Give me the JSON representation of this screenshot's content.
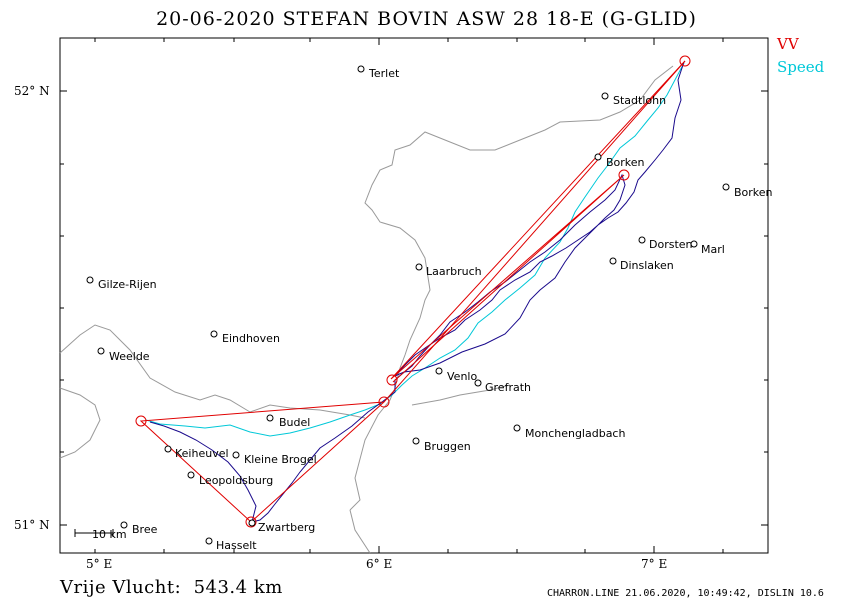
{
  "title": "20-06-2020   STEFAN BOVIN   ASW 28 18-E (G-GLID)",
  "legend": {
    "vv_label": "VV",
    "vv_color": "#e00000",
    "speed_label": "Speed",
    "speed_color": "#00c8d8"
  },
  "track_color": "#1a0a8c",
  "border_color": "#9a9a9a",
  "distance_text": "Vrije Vlucht:  543.4 km",
  "footer_text": "CHARRON.LINE 21.06.2020, 10:49:42, DISLIN 10.6",
  "axes": {
    "y_ticks": [
      {
        "value": 52,
        "label": "52° N"
      },
      {
        "value": 51,
        "label": "51° N"
      }
    ],
    "x_ticks": [
      {
        "value": 5,
        "label": "5° E"
      },
      {
        "value": 6,
        "label": "6° E"
      },
      {
        "value": 7,
        "label": "7° E"
      }
    ]
  },
  "scale_bar_label": "10 km",
  "places": [
    {
      "name": "Terlet"
    },
    {
      "name": "Stadtlohn"
    },
    {
      "name": "Borken"
    },
    {
      "name": "Borken"
    },
    {
      "name": "Dorsten"
    },
    {
      "name": "Marl"
    },
    {
      "name": "Dinslaken"
    },
    {
      "name": "Laarbruch"
    },
    {
      "name": "Gilze-Rijen"
    },
    {
      "name": "Eindhoven"
    },
    {
      "name": "Weelde"
    },
    {
      "name": "Venlo"
    },
    {
      "name": "Grefrath"
    },
    {
      "name": "Budel"
    },
    {
      "name": "Monchengladbach"
    },
    {
      "name": "Bruggen"
    },
    {
      "name": "Keiheuvel"
    },
    {
      "name": "Kleine Brogel"
    },
    {
      "name": "Leopoldsburg"
    },
    {
      "name": "Zwartberg"
    },
    {
      "name": "Bree"
    },
    {
      "name": "Hasselt"
    }
  ]
}
